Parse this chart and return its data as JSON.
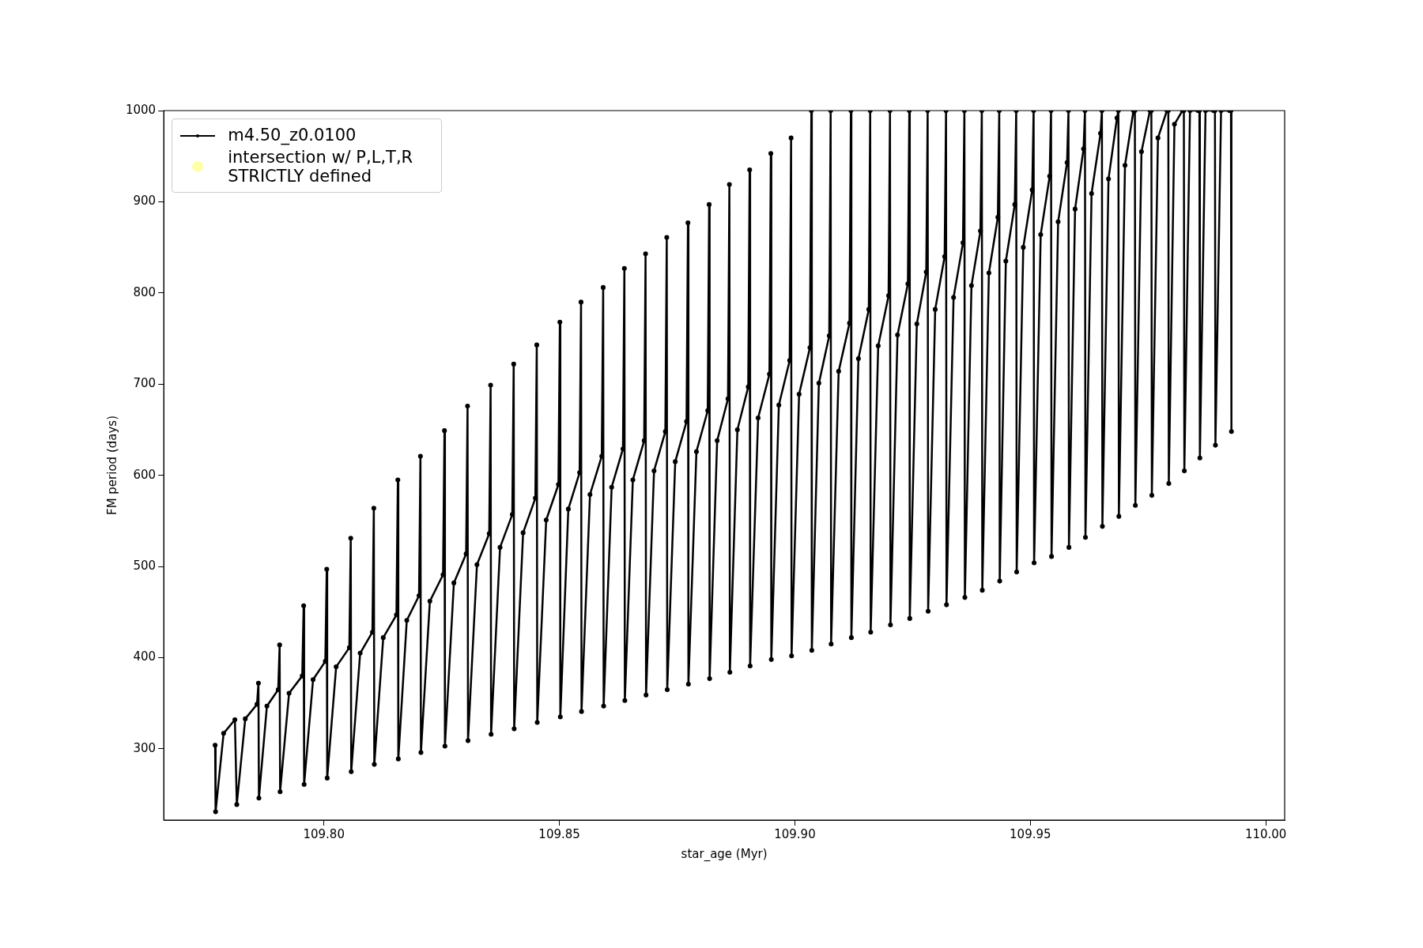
{
  "chart_data": {
    "type": "line",
    "xlabel": "star_age (Myr)",
    "ylabel": "FM period (days)",
    "xlim": [
      109.766,
      110.004
    ],
    "ylim": [
      222,
      1000
    ],
    "xticks": [
      {
        "value": 109.8,
        "label": "109.80"
      },
      {
        "value": 109.85,
        "label": "109.85"
      },
      {
        "value": 109.9,
        "label": "109.90"
      },
      {
        "value": 109.95,
        "label": "109.95"
      },
      {
        "value": 110.0,
        "label": "110.00"
      }
    ],
    "yticks": [
      300,
      400,
      500,
      600,
      700,
      800,
      900,
      1000
    ],
    "grid": false,
    "legend": "top left",
    "marker": "circle",
    "line_style": "solid",
    "series": [
      {
        "name": "m4.50_z0.0100",
        "color": "#000000",
        "x": [
          109.7769,
          109.777,
          109.7787,
          109.7811,
          109.7815,
          109.7833,
          109.7858,
          109.7861,
          109.7862,
          109.7879,
          109.7903,
          109.7906,
          109.7907,
          109.7926,
          109.7954,
          109.7957,
          109.7958,
          109.7977,
          109.8003,
          109.8006,
          109.8007,
          109.8026,
          109.8054,
          109.8057,
          109.8058,
          109.8077,
          109.8103,
          109.8106,
          109.8107,
          109.8126,
          109.8154,
          109.8157,
          109.8158,
          109.8176,
          109.8202,
          109.8205,
          109.8206,
          109.8225,
          109.8253,
          109.8256,
          109.8257,
          109.8276,
          109.8302,
          109.8305,
          109.8306,
          109.8325,
          109.8351,
          109.8354,
          109.8355,
          109.8374,
          109.84,
          109.8403,
          109.8404,
          109.8423,
          109.8449,
          109.8452,
          109.8453,
          109.8472,
          109.8498,
          109.8501,
          109.8502,
          109.8519,
          109.8543,
          109.8546,
          109.8547,
          109.8565,
          109.859,
          109.8593,
          109.8594,
          109.8611,
          109.8635,
          109.8638,
          109.8639,
          109.8656,
          109.868,
          109.8683,
          109.8684,
          109.8701,
          109.8725,
          109.8728,
          109.8729,
          109.8746,
          109.877,
          109.8773,
          109.8774,
          109.8791,
          109.8815,
          109.8818,
          109.8819,
          109.8835,
          109.8858,
          109.8861,
          109.8862,
          109.8878,
          109.8901,
          109.8904,
          109.8905,
          109.8922,
          109.8946,
          109.8949,
          109.895,
          109.8966,
          109.8989,
          109.8992,
          109.8993,
          109.9009,
          109.9032,
          109.9035,
          109.9036,
          109.9051,
          109.9073,
          109.9076,
          109.9077,
          109.9093,
          109.9116,
          109.9119,
          109.912,
          109.9135,
          109.9157,
          109.916,
          109.9161,
          109.9177,
          109.9199,
          109.9202,
          109.9203,
          109.9218,
          109.924,
          109.9243,
          109.9244,
          109.9259,
          109.9279,
          109.9282,
          109.9283,
          109.9298,
          109.9318,
          109.9321,
          109.9322,
          109.9337,
          109.9357,
          109.936,
          109.9361,
          109.9375,
          109.9394,
          109.9397,
          109.9398,
          109.9412,
          109.9431,
          109.9434,
          109.9435,
          109.9448,
          109.9467,
          109.947,
          109.9471,
          109.9485,
          109.9504,
          109.9507,
          109.9508,
          109.9522,
          109.9541,
          109.9544,
          109.9545,
          109.9559,
          109.9578,
          109.9581,
          109.9582,
          109.9595,
          109.9613,
          109.9616,
          109.9617,
          109.963,
          109.9649,
          109.9652,
          109.9653,
          109.9666,
          109.9684,
          109.9687,
          109.9688,
          109.9701,
          109.9719,
          109.9722,
          109.9723,
          109.9736,
          109.9754,
          109.9757,
          109.9758,
          109.9771,
          109.979,
          109.9793,
          109.9794,
          109.9806,
          109.9823,
          109.9826,
          109.9827,
          109.9839,
          109.9856,
          109.9859,
          109.986,
          109.9872,
          109.9889,
          109.9892,
          109.9893,
          109.9905,
          109.9923,
          109.9926,
          109.9927
        ],
        "values": [
          304,
          231,
          317,
          332,
          239,
          333,
          349,
          372,
          246,
          347,
          365,
          414,
          253,
          361,
          380,
          457,
          261,
          376,
          396,
          497,
          268,
          390,
          411,
          531,
          275,
          405,
          428,
          564,
          283,
          422,
          447,
          595,
          289,
          441,
          468,
          621,
          296,
          462,
          491,
          649,
          303,
          482,
          514,
          676,
          309,
          502,
          536,
          699,
          316,
          521,
          557,
          722,
          322,
          537,
          575,
          743,
          329,
          551,
          590,
          768,
          335,
          563,
          603,
          790,
          341,
          579,
          621,
          806,
          347,
          587,
          629,
          827,
          353,
          595,
          638,
          843,
          359,
          605,
          648,
          861,
          365,
          615,
          659,
          877,
          371,
          626,
          671,
          897,
          377,
          638,
          684,
          919,
          384,
          650,
          697,
          935,
          391,
          663,
          711,
          953,
          398,
          677,
          726,
          970,
          402,
          689,
          740,
          1000,
          408,
          701,
          753,
          1000,
          415,
          714,
          767,
          1000,
          422,
          728,
          782,
          1000,
          428,
          742,
          797,
          1000,
          436,
          754,
          810,
          1000,
          443,
          766,
          823,
          1000,
          451,
          782,
          840,
          1000,
          458,
          795,
          855,
          1000,
          466,
          808,
          868,
          1000,
          474,
          822,
          883,
          1000,
          484,
          835,
          897,
          1000,
          494,
          850,
          913,
          1000,
          504,
          864,
          928,
          1000,
          511,
          878,
          943,
          1000,
          521,
          892,
          958,
          1000,
          532,
          909,
          975,
          1000,
          544,
          925,
          992,
          1000,
          555,
          940,
          1000,
          1000,
          567,
          955,
          1000,
          1000,
          578,
          970,
          1000,
          1000,
          591,
          985,
          1000,
          1000,
          605,
          1000,
          1000,
          1000,
          619,
          1000,
          1000,
          1000,
          633,
          1000,
          1000,
          1000,
          648
        ]
      },
      {
        "name": "intersection w/ P,L,T,R STRICTLY defined",
        "color": "#ffffaa",
        "type": "scatter"
      }
    ]
  }
}
